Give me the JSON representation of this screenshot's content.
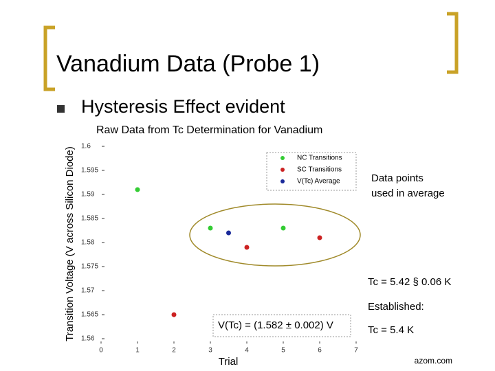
{
  "slide": {
    "title": "Vanadium Data (Probe 1)",
    "bullet": "Hysteresis Effect evident",
    "note": "Data points used in average",
    "result": "Tc = 5.42 § 0.06 K",
    "established_label": "Established:",
    "established_value": "Tc = 5.4 K",
    "source": "azom.com"
  },
  "chart_data": {
    "type": "scatter",
    "title": "Raw Data from Tc Determination for Vanadium",
    "x_label": "Trial",
    "y_label": "Transition Voltage (V across Silicon Diode)",
    "annotation": "V(Tc) = (1.582 ± 0.002) V",
    "xlim": [
      0,
      7
    ],
    "xticks": [
      0,
      1,
      2,
      3,
      4,
      5,
      6,
      7
    ],
    "ylim": [
      1.56,
      1.6
    ],
    "yticks": [
      1.56,
      1.565,
      1.57,
      1.575,
      1.58,
      1.585,
      1.59,
      1.595,
      1.6
    ],
    "legend": "upper right",
    "series": [
      {
        "name": "NC Transitions",
        "color": "#33cc33",
        "x": [
          1,
          3,
          5
        ],
        "values": [
          1.591,
          1.583,
          1.583
        ]
      },
      {
        "name": "SC Transitions",
        "color": "#cc2222",
        "x": [
          2,
          4,
          6
        ],
        "values": [
          1.565,
          1.579,
          1.581
        ]
      },
      {
        "name": "V(Tc) Average",
        "color": "#1a2a9a",
        "x": [
          3.5
        ],
        "values": [
          1.582
        ]
      }
    ]
  }
}
